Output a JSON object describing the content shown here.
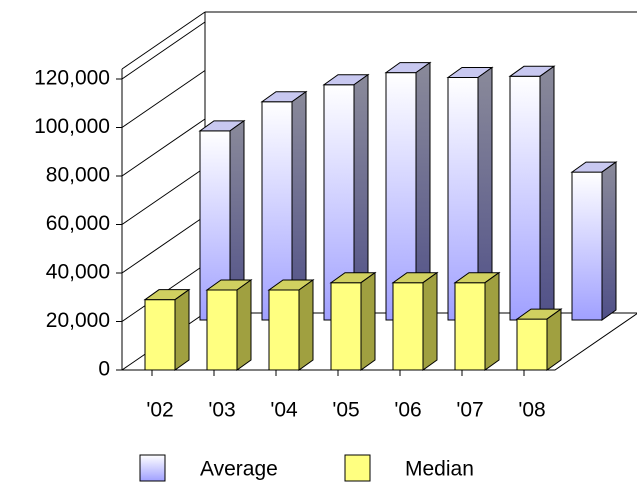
{
  "chart_data": {
    "type": "bar3d",
    "categories": [
      "'02",
      "'03",
      "'04",
      "'05",
      "'06",
      "'07",
      "'08"
    ],
    "series": [
      {
        "name": "Average",
        "color": "#a0a0ff",
        "values": [
          78000,
          90000,
          97000,
          102000,
          100000,
          100500,
          61000
        ]
      },
      {
        "name": "Median",
        "color": "#ffff80",
        "values": [
          29000,
          33000,
          33000,
          36000,
          36000,
          36000,
          21000
        ]
      }
    ],
    "ylim": [
      0,
      120000
    ],
    "yticks": [
      0,
      {
        "value": 20000,
        "label": "20,000"
      },
      {
        "value": 40000,
        "label": "40,000"
      },
      {
        "value": 60000,
        "label": "60,000"
      },
      {
        "value": 80000,
        "label": "80,000"
      },
      {
        "value": 100000,
        "label": "100,000"
      },
      {
        "value": 120000,
        "label": "120,000"
      }
    ],
    "legend": "bottom"
  }
}
